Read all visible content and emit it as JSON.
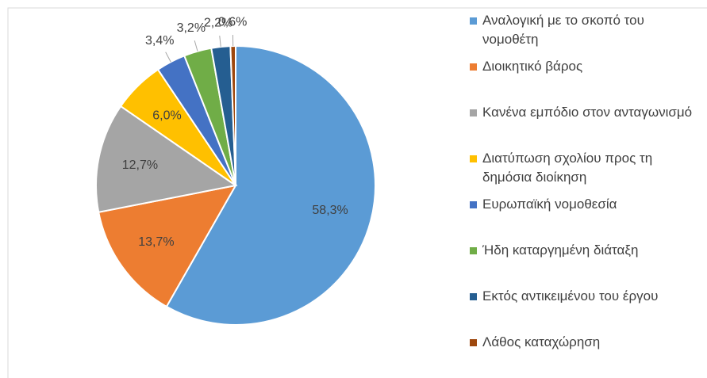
{
  "chart_data": {
    "type": "pie",
    "categories": [
      "Αναλογική με το σκοπό του νομοθέτη",
      "Διοικητικό βάρος",
      "Κανένα εμπόδιο στον ανταγωνισμό",
      "Διατύπωση σχολίου προς τη δημόσια διοίκηση",
      "Ευρωπαϊκή νομοθεσία",
      "Ήδη καταργημένη διάταξη",
      "Εκτός αντικειμένου του έργου",
      "Λάθος καταχώρηση"
    ],
    "values": [
      58.3,
      13.7,
      12.7,
      6.0,
      3.4,
      3.2,
      2.2,
      0.6
    ],
    "value_labels": [
      "58,3%",
      "13,7%",
      "12,7%",
      "6,0%",
      "3,4%",
      "3,2%",
      "2,2%",
      "0,6%"
    ],
    "colors": [
      "#5b9bd5",
      "#ed7d31",
      "#a5a5a5",
      "#ffc000",
      "#4472c4",
      "#70ad47",
      "#255e91",
      "#9e480e"
    ],
    "legend": "right"
  }
}
